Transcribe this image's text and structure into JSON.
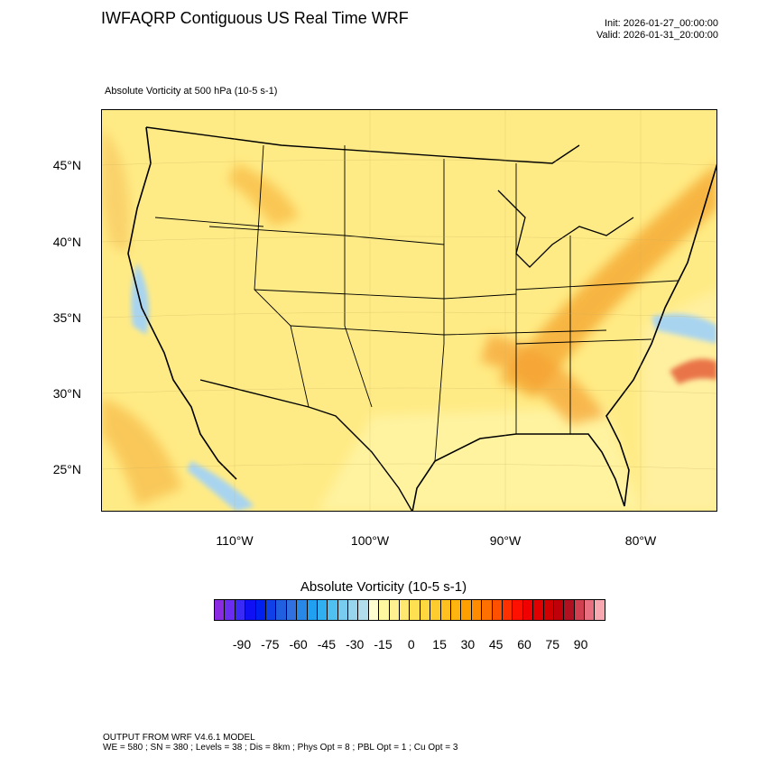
{
  "header": {
    "title": "IWFAQRP Contiguous US Real Time WRF",
    "init": "Init: 2026-01-27_00:00:00",
    "valid": "Valid: 2026-01-31_20:00:00",
    "field": "Absolute Vorticity at 500 hPa   (10-5 s-1)"
  },
  "map": {
    "lat_labels": [
      "45°N",
      "40°N",
      "35°N",
      "30°N",
      "25°N"
    ],
    "lon_labels": [
      "110°W",
      "100°W",
      "90°W",
      "80°W"
    ],
    "colors": {
      "base": "#FFE87A",
      "ocean": "#FFF5A8",
      "orange": "#F8B838",
      "deep": "#F0902A",
      "blue": "#A8D4F0",
      "red": "#D81010"
    }
  },
  "colorbar": {
    "title": "Absolute Vorticity  (10-5 s-1)",
    "labels": [
      "-90",
      "-75",
      "-60",
      "-45",
      "-30",
      "-15",
      "0",
      "15",
      "30",
      "45",
      "60",
      "75",
      "90"
    ],
    "colors": [
      "#8A2BE2",
      "#6A2CF0",
      "#3A2AF5",
      "#1010F5",
      "#0020F0",
      "#1040E8",
      "#2060E0",
      "#3070E0",
      "#2888E8",
      "#20A0F0",
      "#30B0F0",
      "#50C0F0",
      "#78CCF0",
      "#98D4EC",
      "#B0DCEC",
      "#FFFFD0",
      "#FFF8A0",
      "#FFF090",
      "#FFE870",
      "#FFE050",
      "#FFD840",
      "#FFCC30",
      "#FFC020",
      "#FFB410",
      "#FFA000",
      "#FF8C00",
      "#FF7000",
      "#FF5000",
      "#FF3000",
      "#FF1000",
      "#F00000",
      "#E00000",
      "#D00000",
      "#C00008",
      "#B01020",
      "#D04050",
      "#E87080",
      "#F8A8B0"
    ]
  },
  "footer": {
    "line1": "OUTPUT FROM WRF V4.6.1 MODEL",
    "line2": "WE = 580 ; SN = 380 ; Levels = 38 ; Dis = 8km ; Phys Opt = 8 ; PBL Opt = 1 ; Cu Opt = 3"
  }
}
